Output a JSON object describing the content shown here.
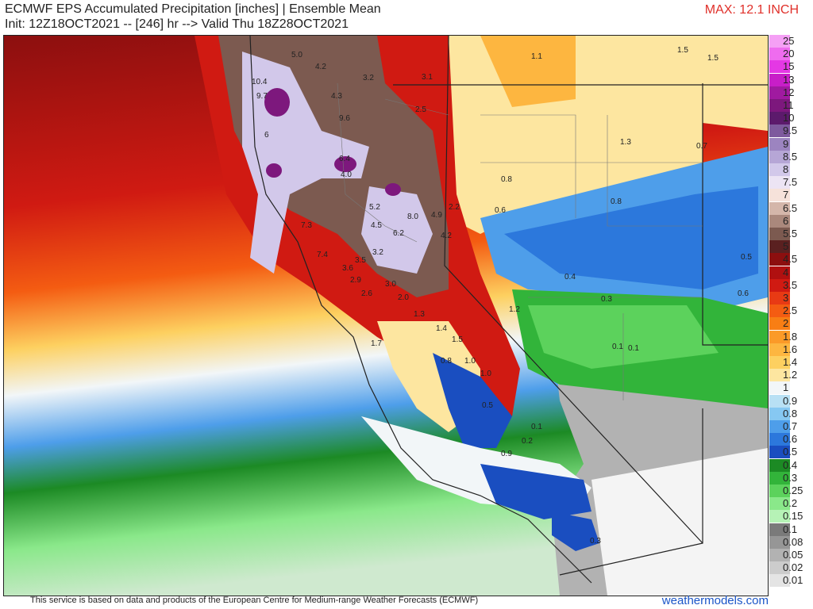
{
  "header": {
    "title": "ECMWF EPS Accumulated Precipitation [inches] | Ensemble Mean",
    "subtitle": "Init: 12Z18OCT2021 -- [246] hr --> Valid Thu 18Z28OCT2021",
    "max": "MAX: 12.1 INCH"
  },
  "legend": [
    {
      "label": "25",
      "color": "#f5a0f5"
    },
    {
      "label": "20",
      "color": "#ef6cef"
    },
    {
      "label": "15",
      "color": "#e438e4"
    },
    {
      "label": "13",
      "color": "#c81ec8"
    },
    {
      "label": "12",
      "color": "#a01aa0"
    },
    {
      "label": "11",
      "color": "#7d187d"
    },
    {
      "label": "10",
      "color": "#5c1a6c"
    },
    {
      "label": "9.5",
      "color": "#7e5a9e"
    },
    {
      "label": "9",
      "color": "#9c84c0"
    },
    {
      "label": "8.5",
      "color": "#b6a6d6"
    },
    {
      "label": "8",
      "color": "#d2c8ea"
    },
    {
      "label": "7.5",
      "color": "#ece4f4"
    },
    {
      "label": "7",
      "color": "#f6e2da"
    },
    {
      "label": "6.5",
      "color": "#d4b6aa"
    },
    {
      "label": "6",
      "color": "#aa887c"
    },
    {
      "label": "5.5",
      "color": "#7c5a50"
    },
    {
      "label": "5",
      "color": "#5a2020"
    },
    {
      "label": "4.5",
      "color": "#8c0f0f"
    },
    {
      "label": "4",
      "color": "#b01010"
    },
    {
      "label": "3.5",
      "color": "#d01a12"
    },
    {
      "label": "3",
      "color": "#e83a14"
    },
    {
      "label": "2.5",
      "color": "#f45c12"
    },
    {
      "label": "2",
      "color": "#f87e14"
    },
    {
      "label": "1.8",
      "color": "#fb9a28"
    },
    {
      "label": "1.6",
      "color": "#fdb640"
    },
    {
      "label": "1.4",
      "color": "#fdd060"
    },
    {
      "label": "1.2",
      "color": "#fde6a0"
    },
    {
      "label": "1",
      "color": "#f2f6f8"
    },
    {
      "label": "0.9",
      "color": "#b8e0f4"
    },
    {
      "label": "0.8",
      "color": "#86c8f2"
    },
    {
      "label": "0.7",
      "color": "#4e9eea"
    },
    {
      "label": "0.6",
      "color": "#2c78dc"
    },
    {
      "label": "0.5",
      "color": "#1a4ec0"
    },
    {
      "label": "0.4",
      "color": "#1c8a24"
    },
    {
      "label": "0.3",
      "color": "#32b43a"
    },
    {
      "label": "0.25",
      "color": "#5cd25c"
    },
    {
      "label": "0.2",
      "color": "#8ae88a"
    },
    {
      "label": "0.15",
      "color": "#b6f2b6"
    },
    {
      "label": "0.1",
      "color": "#7a7a7a"
    },
    {
      "label": "0.08",
      "color": "#969696"
    },
    {
      "label": "0.05",
      "color": "#b2b2b2"
    },
    {
      "label": "0.02",
      "color": "#cccccc"
    },
    {
      "label": "0.01",
      "color": "#e4e4e4"
    }
  ],
  "map_values": [
    "5.0",
    "4.2",
    "3.2",
    "3.1",
    "10.4",
    "9.7",
    "4.3",
    "2.5",
    "9.6",
    "1.1",
    "6",
    "6.4",
    "4.0",
    "1.3",
    "5.2",
    "8.0",
    "4.9",
    "2.2",
    "0.8",
    "7.3",
    "4.5",
    "6.2",
    "4.2",
    "0.6",
    "7.4",
    "3.5",
    "3.6",
    "3.2",
    "0.4",
    "2.9",
    "2.6",
    "3.0",
    "2.0",
    "0.3",
    "1.2",
    "1.3",
    "1.4",
    "1.5",
    "0.1",
    "0.1",
    "1.7",
    "0.8",
    "1.0",
    "1.0",
    "0.5",
    "0.7",
    "0.8",
    "0.6",
    "0.5",
    "0.2",
    "0.9",
    "0.3",
    "1.5",
    "1.5",
    "0.1"
  ],
  "footer": {
    "credit": "This service is based on data and products of the European Centre for Medium-range Weather Forecasts (ECMWF)",
    "site": "weathermodels.com"
  }
}
